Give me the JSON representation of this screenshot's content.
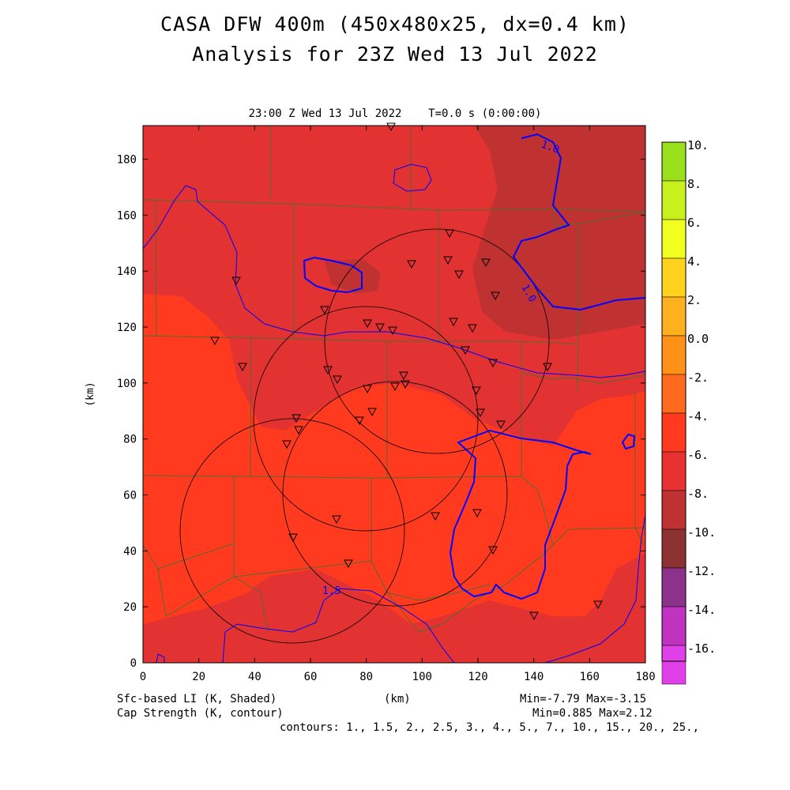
{
  "title": {
    "line1": "CASA DFW 400m (450x480x25, dx=0.4 km)",
    "line2": "Analysis for 23Z Wed 13 Jul 2022"
  },
  "subtitle": "23:00 Z Wed 13 Jul 2022    T=0.0 s (0:00:00)",
  "axes": {
    "x_ticks": [
      "0",
      "20",
      "40",
      "60",
      "80",
      "100",
      "120",
      "140",
      "160",
      "180"
    ],
    "y_ticks": [
      "0",
      "20",
      "40",
      "60",
      "80",
      "100",
      "120",
      "140",
      "160",
      "180"
    ],
    "x_label": "(km)",
    "y_label": "(km)",
    "x_range_km": [
      0,
      180
    ],
    "y_range_km": [
      0,
      192
    ]
  },
  "colorbar": {
    "labels": [
      "10.",
      "8.",
      "6.",
      "4.",
      "2.",
      "0.0",
      "-2.",
      "-4.",
      "-6.",
      "-8.",
      "-10.",
      "-12.",
      "-14.",
      "-16."
    ],
    "colors": [
      "#9be01c",
      "#c8f01c",
      "#f0ff1e",
      "#ffd21e",
      "#ffb01e",
      "#ff9018",
      "#ff6a1e",
      "#ff3a1e",
      "#e83232",
      "#c03232",
      "#8c3232",
      "#8c328c",
      "#c032c0",
      "#e040e8"
    ]
  },
  "contour_labels": [
    "1.0",
    "1.0",
    "1.5"
  ],
  "footer": {
    "left1": "Sfc-based LI (K, Shaded)",
    "left2": "Cap Strength (K, contour)",
    "center": "(km)",
    "right1": "Min=-7.79 Max=-3.15",
    "right2": "Min=0.885 Max=2.12",
    "contours": "contours: 1., 1.5, 2., 2.5, 3., 4., 5., 7., 10., 15., 20., 25.,"
  },
  "colors": {
    "field_mid": "#e23232",
    "field_warm": "#ff3a1e",
    "field_cold": "#c03232",
    "contour": "#0000ff",
    "county_lines": "#556b2f"
  }
}
